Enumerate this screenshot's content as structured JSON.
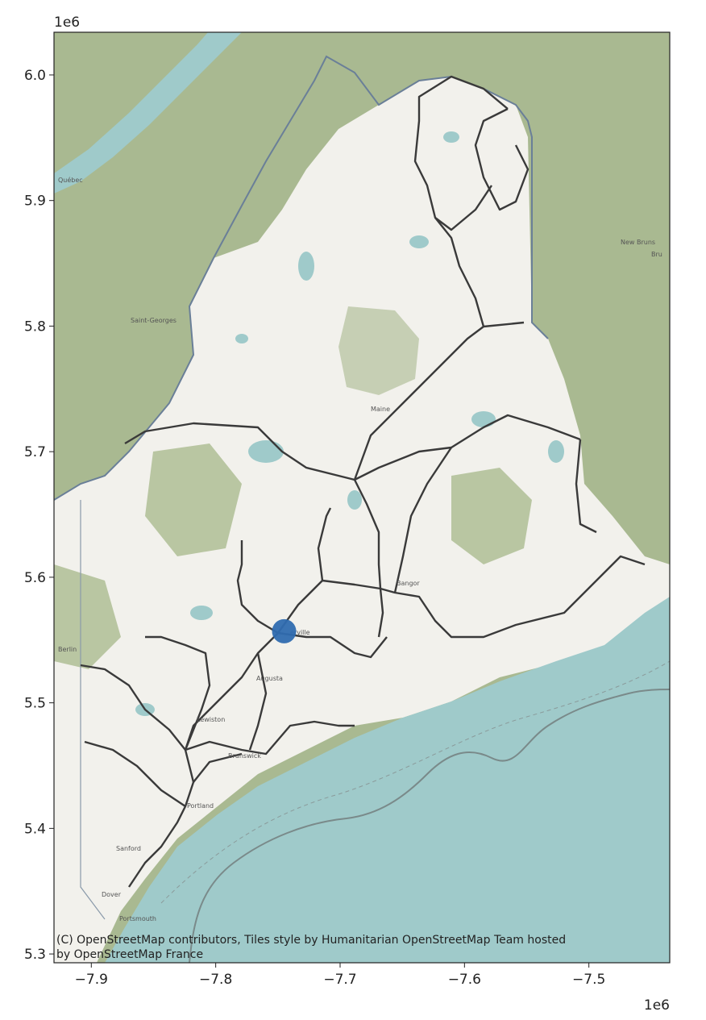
{
  "figure": {
    "x_offset_label": "1e6",
    "y_offset_label": "1e6",
    "attribution": [
      "(C) OpenStreetMap contributors, Tiles style by Humanitarian OpenStreetMap Team hosted",
      "by OpenStreetMap France"
    ]
  },
  "chart_data": {
    "type": "scatter",
    "xlim": [
      -7.93,
      -7.435
    ],
    "ylim": [
      5.293,
      6.034
    ],
    "x_ticks": [
      "−7.9",
      "−7.8",
      "−7.7",
      "−7.6",
      "−7.5"
    ],
    "y_ticks": [
      "5.3",
      "5.4",
      "5.5",
      "5.6",
      "5.7",
      "5.8",
      "5.9",
      "6.0"
    ],
    "x_tick_values": [
      -7.9,
      -7.8,
      -7.7,
      -7.6,
      -7.5
    ],
    "y_tick_values": [
      5.3,
      5.4,
      5.5,
      5.6,
      5.7,
      5.8,
      5.9,
      6.0
    ],
    "points": [
      {
        "x": -7.745,
        "y": 5.557
      }
    ],
    "point_color": "#2f6bb0",
    "grid": false,
    "legend": "none"
  },
  "map": {
    "colors": {
      "land": "#f2f1ec",
      "forest": "#a9b991",
      "water": "#9fcaca",
      "road": "#3a3a3a"
    },
    "places": [
      "Québec",
      "Saint-Georges",
      "New Bruns",
      "Bru",
      "Maine",
      "Bangor",
      "erville",
      "Augusta",
      "Lewiston",
      "Brunswick",
      "Portland",
      "Sanford",
      "Berlin",
      "Dover",
      "Portsmouth"
    ]
  }
}
